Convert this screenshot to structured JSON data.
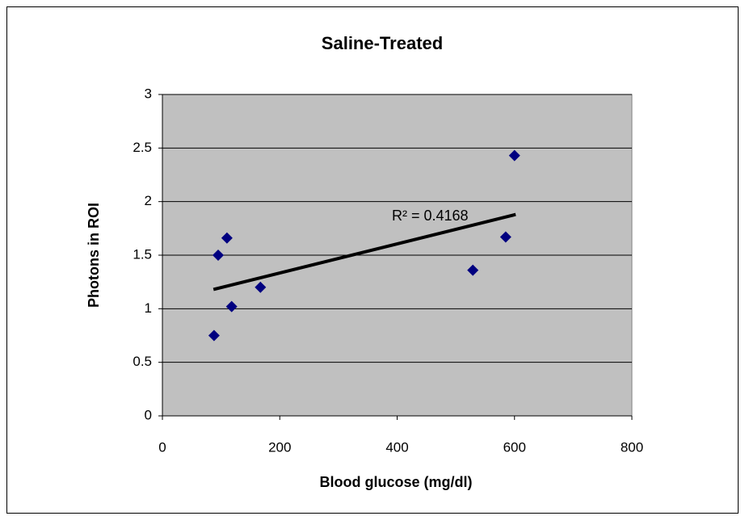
{
  "chart_data": {
    "type": "scatter",
    "title": "Saline-Treated",
    "x_label": "Blood glucose (mg/dl)",
    "y_label": "Photons in ROI",
    "x": [
      88,
      95,
      110,
      118,
      167,
      529,
      585,
      600
    ],
    "values": [
      0.75,
      1.5,
      1.66,
      1.02,
      1.2,
      1.36,
      1.67,
      2.43
    ],
    "color": "#000080",
    "trendline": {
      "x": [
        87,
        602
      ],
      "values": [
        1.18,
        1.88
      ],
      "color": "#000000"
    },
    "annotation": "R² = 0.4168",
    "xlim": [
      0,
      800
    ],
    "xticks": [
      0,
      200,
      400,
      600,
      800
    ],
    "ylim": [
      0,
      3
    ],
    "yticks": [
      0,
      0.5,
      1,
      1.5,
      2,
      2.5,
      3
    ],
    "grid": true,
    "background": "#c0c0c0"
  }
}
